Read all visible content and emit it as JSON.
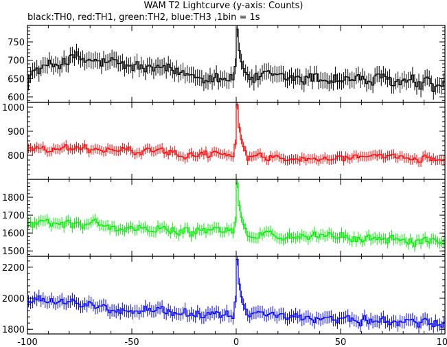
{
  "title": "WAM T2 Lightcurve (y-axis: Counts)",
  "subtitle": "black:TH0, red:TH1, green:TH2, blue:TH3 ,1bin = 1s",
  "chart_data": {
    "type": "line",
    "xlabel": "",
    "xlim": [
      -100,
      100
    ],
    "x_ticks": [
      -100,
      -50,
      0,
      50,
      100
    ],
    "x_tick_labels": [
      "-100",
      "-50",
      "0",
      "50",
      "100"
    ],
    "bin_size_s": 1,
    "panels": [
      {
        "name": "TH0",
        "color": "#000000",
        "ylim": [
          585,
          795
        ],
        "y_ticks": [
          600,
          650,
          700,
          750
        ],
        "y_tick_labels": [
          "600",
          "650",
          "700",
          "750"
        ],
        "baseline": [
          [
            -100,
            660
          ],
          [
            -80,
            705
          ],
          [
            -60,
            690
          ],
          [
            -40,
            675
          ],
          [
            -20,
            660
          ],
          [
            -2,
            655
          ],
          [
            20,
            650
          ],
          [
            50,
            650
          ],
          [
            80,
            640
          ],
          [
            100,
            625
          ]
        ],
        "noise": 22,
        "error": 22,
        "peak": 785
      },
      {
        "name": "TH1",
        "color": "#ff0000",
        "ylim": [
          700,
          1020
        ],
        "y_ticks": [
          800,
          900,
          1000
        ],
        "y_tick_labels": [
          "800",
          "900",
          "1000"
        ],
        "baseline": [
          [
            -100,
            830
          ],
          [
            -70,
            825
          ],
          [
            -40,
            815
          ],
          [
            -20,
            805
          ],
          [
            -2,
            800
          ],
          [
            20,
            790
          ],
          [
            50,
            790
          ],
          [
            80,
            785
          ],
          [
            100,
            790
          ]
        ],
        "noise": 17,
        "error": 20,
        "peak": 1010
      },
      {
        "name": "TH2",
        "color": "#00ee00",
        "ylim": [
          1470,
          1900
        ],
        "y_ticks": [
          1500,
          1600,
          1700,
          1800
        ],
        "y_tick_labels": [
          "1500",
          "1600",
          "1700",
          "1800"
        ],
        "baseline": [
          [
            -100,
            1650
          ],
          [
            -70,
            1655
          ],
          [
            -62,
            1640
          ],
          [
            -60,
            1630
          ],
          [
            -40,
            1625
          ],
          [
            -20,
            1610
          ],
          [
            -2,
            1600
          ],
          [
            20,
            1590
          ],
          [
            50,
            1575
          ],
          [
            80,
            1560
          ],
          [
            100,
            1545
          ]
        ],
        "noise": 28,
        "error": 30,
        "peak": 1880
      },
      {
        "name": "TH3",
        "color": "#0000ff",
        "ylim": [
          1770,
          2270
        ],
        "y_ticks": [
          1800,
          2000,
          2200
        ],
        "y_tick_labels": [
          "1800",
          "2000",
          "2200"
        ],
        "baseline": [
          [
            -100,
            1990
          ],
          [
            -70,
            1950
          ],
          [
            -40,
            1920
          ],
          [
            -20,
            1905
          ],
          [
            -2,
            1900
          ],
          [
            20,
            1880
          ],
          [
            50,
            1870
          ],
          [
            80,
            1845
          ],
          [
            100,
            1830
          ]
        ],
        "noise": 32,
        "error": 40,
        "peak": 2250
      }
    ]
  }
}
